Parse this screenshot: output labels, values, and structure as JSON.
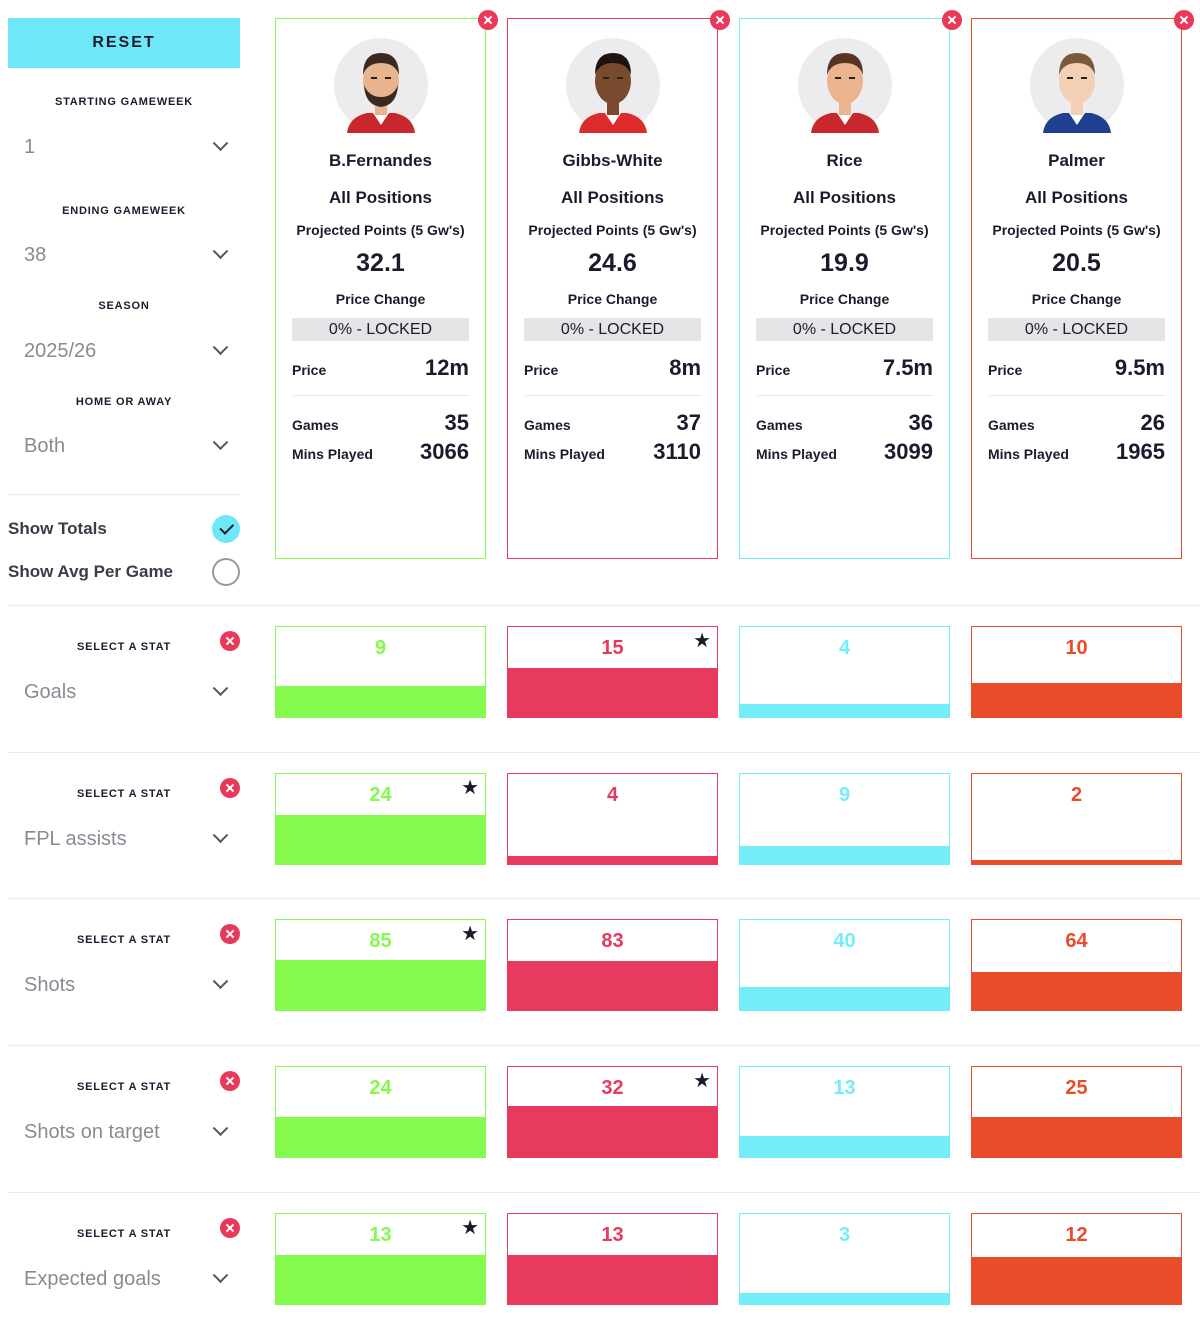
{
  "controls": {
    "reset_label": "RESET",
    "starting_gw": {
      "label": "STARTING GAMEWEEK",
      "value": "1"
    },
    "ending_gw": {
      "label": "ENDING GAMEWEEK",
      "value": "38"
    },
    "season": {
      "label": "SEASON",
      "value": "2025/26"
    },
    "home_away": {
      "label": "HOME OR AWAY",
      "value": "Both"
    },
    "show_totals": {
      "label": "Show Totals",
      "checked": true
    },
    "show_avg": {
      "label": "Show Avg Per Game",
      "checked": false
    }
  },
  "colors": {
    "green": "#84f94e",
    "red": "#e83a5e",
    "cyan": "#73eef9",
    "orange": "#e84c2b"
  },
  "players": [
    {
      "name": "B.Fernandes",
      "positions": "All Positions",
      "projected_label": "Projected Points (5 Gw's)",
      "projected": "32.1",
      "price_change_label": "Price Change",
      "price_change": "0% - LOCKED",
      "price_label": "Price",
      "price": "12m",
      "games_label": "Games",
      "games": "35",
      "mins_label": "Mins Played",
      "mins": "3066",
      "color": "#84f94e",
      "kit": "#c8272d"
    },
    {
      "name": "Gibbs-White",
      "positions": "All Positions",
      "projected_label": "Projected Points (5 Gw's)",
      "projected": "24.6",
      "price_change_label": "Price Change",
      "price_change": "0% - LOCKED",
      "price_label": "Price",
      "price": "8m",
      "games_label": "Games",
      "games": "37",
      "mins_label": "Mins Played",
      "mins": "3110",
      "color": "#e83a5e",
      "kit": "#dd2a2a"
    },
    {
      "name": "Rice",
      "positions": "All Positions",
      "projected_label": "Projected Points (5 Gw's)",
      "projected": "19.9",
      "price_change_label": "Price Change",
      "price_change": "0% - LOCKED",
      "price_label": "Price",
      "price": "7.5m",
      "games_label": "Games",
      "games": "36",
      "mins_label": "Mins Played",
      "mins": "3099",
      "color": "#73eef9",
      "kit": "#c8272d"
    },
    {
      "name": "Palmer",
      "positions": "All Positions",
      "projected_label": "Projected Points (5 Gw's)",
      "projected": "20.5",
      "price_change_label": "Price Change",
      "price_change": "0% - LOCKED",
      "price_label": "Price",
      "price": "9.5m",
      "games_label": "Games",
      "games": "26",
      "mins_label": "Mins Played",
      "mins": "1965",
      "color": "#e84c2b",
      "kit": "#1f3f8f"
    }
  ],
  "stats": [
    {
      "select_label": "SELECT A STAT",
      "stat": "Goals",
      "values": [
        "9",
        "15",
        "4",
        "10"
      ],
      "fill": [
        0.35,
        0.55,
        0.15,
        0.38
      ],
      "best": [
        false,
        true,
        false,
        false
      ]
    },
    {
      "select_label": "SELECT A STAT",
      "stat": "FPL assists",
      "values": [
        "24",
        "4",
        "9",
        "2"
      ],
      "fill": [
        0.55,
        0.09,
        0.2,
        0.04
      ],
      "best": [
        true,
        false,
        false,
        false
      ]
    },
    {
      "select_label": "SELECT A STAT",
      "stat": "Shots",
      "values": [
        "85",
        "83",
        "40",
        "64"
      ],
      "fill": [
        0.56,
        0.55,
        0.26,
        0.42
      ],
      "best": [
        true,
        false,
        false,
        false
      ]
    },
    {
      "select_label": "SELECT A STAT",
      "stat": "Shots on target",
      "values": [
        "24",
        "32",
        "13",
        "25"
      ],
      "fill": [
        0.44,
        0.57,
        0.23,
        0.45
      ],
      "best": [
        false,
        true,
        false,
        false
      ]
    },
    {
      "select_label": "SELECT A STAT",
      "stat": "Expected goals",
      "values": [
        "13",
        "13",
        "3",
        "12"
      ],
      "fill": [
        0.55,
        0.55,
        0.12,
        0.52
      ],
      "best": [
        true,
        false,
        false,
        false
      ]
    }
  ]
}
